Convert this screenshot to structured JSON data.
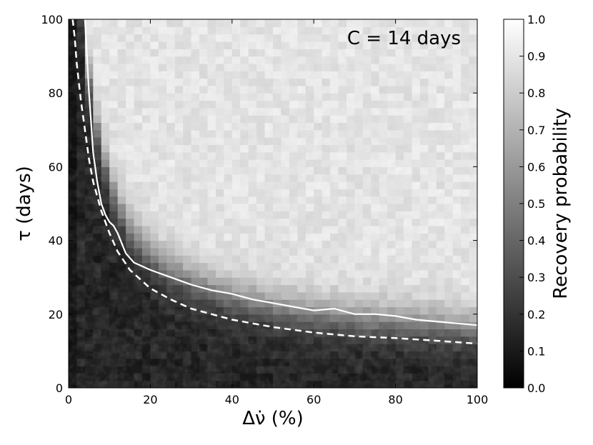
{
  "chart_data": {
    "type": "heatmap",
    "annotation": "C = 14 days",
    "xlabel": "Δν̇ (%)",
    "ylabel": "τ (days)",
    "xlim": [
      0,
      100
    ],
    "ylim": [
      0,
      100
    ],
    "x_ticks": [
      "0",
      "20",
      "40",
      "60",
      "80",
      "100"
    ],
    "y_ticks": [
      "0",
      "20",
      "40",
      "60",
      "80",
      "100"
    ],
    "colorbar": {
      "label": "Recovery probability",
      "range": [
        0.0,
        1.0
      ],
      "ticks": [
        "0.0",
        "0.1",
        "0.2",
        "0.3",
        "0.4",
        "0.5",
        "0.6",
        "0.7",
        "0.8",
        "0.9",
        "1.0"
      ],
      "colormap": "gray"
    },
    "contour_50pct": {
      "x": [
        4,
        4.5,
        5,
        5.5,
        6,
        7,
        8,
        9,
        10,
        11,
        12,
        14,
        16,
        18,
        20,
        25,
        30,
        35,
        40,
        45,
        50,
        55,
        60,
        65,
        70,
        75,
        80,
        85,
        90,
        95,
        100
      ],
      "y": [
        100,
        90,
        80,
        72,
        64,
        56,
        50,
        47,
        45,
        44,
        42,
        36.5,
        34,
        33,
        32,
        30,
        28,
        26.5,
        25.5,
        24,
        23,
        22,
        21,
        21.5,
        20,
        20,
        19.5,
        18.5,
        18,
        17.5,
        17
      ]
    },
    "threshold_curve": {
      "x": [
        1,
        1.5,
        2,
        3,
        4,
        5,
        6,
        8,
        10,
        12,
        15,
        20,
        25,
        30,
        40,
        50,
        60,
        70,
        80,
        90,
        100
      ],
      "y": [
        100,
        95,
        88,
        78,
        70,
        62,
        56,
        48,
        42,
        37,
        32,
        27,
        24,
        21.5,
        18.5,
        16.5,
        15,
        14,
        13.5,
        12.8,
        12
      ]
    },
    "colors": {
      "contour": "#ffffff",
      "threshold_curve": "#ffffff"
    }
  }
}
